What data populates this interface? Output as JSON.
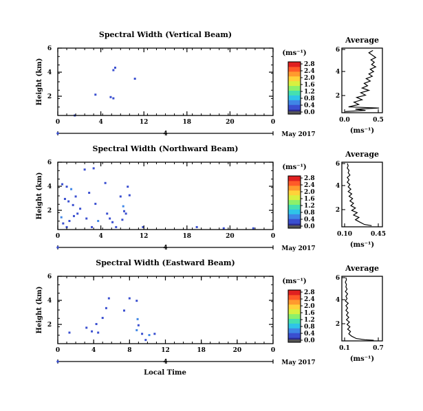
{
  "chart_data": [
    {
      "type": "heatmap",
      "title": "Spectral Width (Vertical Beam)",
      "ylabel": "Height (km)",
      "xticks": [
        "0",
        "4",
        "12",
        "18",
        "20",
        "0"
      ],
      "yticks": [
        "2",
        "4",
        "6"
      ],
      "ylim": [
        0.5,
        6
      ],
      "xlim": [
        0,
        24
      ],
      "date_marker": "4",
      "date_label": "May 2017",
      "colorbar": {
        "unit": "(ms⁻¹)",
        "ticks": [
          "0.0",
          "0.4",
          "0.8",
          "1.2",
          "1.6",
          "2.0",
          "2.4",
          "2.8"
        ],
        "range": [
          0,
          2.8
        ]
      },
      "cells": [
        {
          "x": 6.4,
          "y": 4.4,
          "v": 0.3
        },
        {
          "x": 6.2,
          "y": 4.2,
          "v": 0.3
        },
        {
          "x": 8.6,
          "y": 3.5,
          "v": 0.4
        },
        {
          "x": 4.2,
          "y": 2.2,
          "v": 0.3
        },
        {
          "x": 5.9,
          "y": 2.0,
          "v": 0.3
        },
        {
          "x": 6.2,
          "y": 1.9,
          "v": 0.3
        },
        {
          "x": 1.9,
          "y": 0.5,
          "v": 0.2
        }
      ],
      "average": {
        "title": "Average",
        "xlabel": "(ms⁻¹)",
        "xticks": [
          "0.0",
          "0.5"
        ],
        "xlim": [
          0,
          0.6
        ],
        "yticks": [
          "2",
          "4",
          "6"
        ],
        "ylim": [
          0.5,
          6
        ],
        "profile": [
          [
            0.05,
            0.6
          ],
          [
            0.35,
            0.7
          ],
          [
            0.2,
            0.8
          ],
          [
            0.55,
            0.9
          ],
          [
            0.1,
            1.0
          ],
          [
            0.25,
            1.2
          ],
          [
            0.18,
            1.4
          ],
          [
            0.3,
            1.6
          ],
          [
            0.22,
            1.8
          ],
          [
            0.35,
            2.0
          ],
          [
            0.28,
            2.2
          ],
          [
            0.4,
            2.4
          ],
          [
            0.3,
            2.6
          ],
          [
            0.38,
            2.8
          ],
          [
            0.33,
            3.0
          ],
          [
            0.42,
            3.2
          ],
          [
            0.36,
            3.4
          ],
          [
            0.45,
            3.6
          ],
          [
            0.4,
            3.8
          ],
          [
            0.47,
            4.0
          ],
          [
            0.42,
            4.2
          ],
          [
            0.5,
            4.4
          ],
          [
            0.44,
            4.6
          ],
          [
            0.48,
            4.8
          ],
          [
            0.43,
            5.0
          ],
          [
            0.5,
            5.2
          ],
          [
            0.45,
            5.4
          ],
          [
            0.4,
            5.6
          ],
          [
            0.46,
            5.8
          ]
        ]
      }
    },
    {
      "type": "heatmap",
      "title": "Spectral Width (Northward Beam)",
      "ylabel": "Height (km)",
      "xticks": [
        "0",
        "4",
        "12",
        "18",
        "20",
        "0"
      ],
      "yticks": [
        "2",
        "4",
        "6"
      ],
      "ylim": [
        0.5,
        6
      ],
      "xlim": [
        0,
        24
      ],
      "date_marker": "4",
      "date_label": "May 2017",
      "colorbar": {
        "unit": "(ms⁻¹)",
        "ticks": [
          "0.0",
          "0.4",
          "0.8",
          "1.2",
          "1.6",
          "2.0",
          "2.4",
          "2.8"
        ],
        "range": [
          0,
          2.8
        ]
      },
      "cells": [
        {
          "x": 0.5,
          "y": 4.2,
          "v": 0.4
        },
        {
          "x": 1.0,
          "y": 4.0,
          "v": 0.3
        },
        {
          "x": 1.5,
          "y": 3.8,
          "v": 0.5
        },
        {
          "x": 0.8,
          "y": 3.0,
          "v": 0.4
        },
        {
          "x": 1.2,
          "y": 2.8,
          "v": 0.3
        },
        {
          "x": 1.7,
          "y": 2.5,
          "v": 0.4
        },
        {
          "x": 2.0,
          "y": 3.2,
          "v": 0.3
        },
        {
          "x": 2.5,
          "y": 2.2,
          "v": 0.4
        },
        {
          "x": 0.4,
          "y": 1.5,
          "v": 0.5
        },
        {
          "x": 0.6,
          "y": 1.0,
          "v": 0.4
        },
        {
          "x": 1.3,
          "y": 1.2,
          "v": 0.3
        },
        {
          "x": 1.8,
          "y": 1.6,
          "v": 0.4
        },
        {
          "x": 2.2,
          "y": 1.8,
          "v": 0.3
        },
        {
          "x": 3.0,
          "y": 5.4,
          "v": 0.4
        },
        {
          "x": 4.0,
          "y": 5.5,
          "v": 0.3
        },
        {
          "x": 3.5,
          "y": 3.5,
          "v": 0.4
        },
        {
          "x": 4.2,
          "y": 2.6,
          "v": 0.3
        },
        {
          "x": 3.2,
          "y": 1.4,
          "v": 0.4
        },
        {
          "x": 4.5,
          "y": 1.2,
          "v": 0.5
        },
        {
          "x": 5.5,
          "y": 1.8,
          "v": 0.3
        },
        {
          "x": 5.8,
          "y": 1.4,
          "v": 0.4
        },
        {
          "x": 6.1,
          "y": 1.1,
          "v": 0.3
        },
        {
          "x": 5.3,
          "y": 4.3,
          "v": 0.3
        },
        {
          "x": 7.0,
          "y": 3.2,
          "v": 0.4
        },
        {
          "x": 7.3,
          "y": 2.4,
          "v": 0.5
        },
        {
          "x": 7.4,
          "y": 2.0,
          "v": 0.4
        },
        {
          "x": 7.6,
          "y": 1.8,
          "v": 0.3
        },
        {
          "x": 7.8,
          "y": 4.0,
          "v": 0.4
        },
        {
          "x": 8.0,
          "y": 3.3,
          "v": 0.3
        },
        {
          "x": 7.2,
          "y": 1.3,
          "v": 0.4
        },
        {
          "x": 9.5,
          "y": 0.7,
          "v": 0.3
        },
        {
          "x": 15.5,
          "y": 0.7,
          "v": 0.3
        },
        {
          "x": 18.5,
          "y": 0.6,
          "v": 0.3
        },
        {
          "x": 21.8,
          "y": 0.6,
          "v": 0.3
        },
        {
          "x": 3.8,
          "y": 0.7,
          "v": 0.4
        },
        {
          "x": 1.0,
          "y": 0.7,
          "v": 0.4
        },
        {
          "x": 6.5,
          "y": 0.7,
          "v": 0.3
        }
      ],
      "average": {
        "title": "Average",
        "xlabel": "(ms⁻¹)",
        "xticks": [
          "0.10",
          "0.45"
        ],
        "xlim": [
          0.05,
          0.5
        ],
        "yticks": [
          "2",
          "4",
          "6"
        ],
        "ylim": [
          0.5,
          6
        ],
        "profile": [
          [
            0.38,
            0.6
          ],
          [
            0.3,
            0.7
          ],
          [
            0.25,
            0.9
          ],
          [
            0.2,
            1.1
          ],
          [
            0.24,
            1.3
          ],
          [
            0.18,
            1.5
          ],
          [
            0.22,
            1.7
          ],
          [
            0.16,
            1.9
          ],
          [
            0.2,
            2.1
          ],
          [
            0.15,
            2.3
          ],
          [
            0.18,
            2.5
          ],
          [
            0.14,
            2.7
          ],
          [
            0.17,
            2.9
          ],
          [
            0.13,
            3.1
          ],
          [
            0.16,
            3.3
          ],
          [
            0.12,
            3.5
          ],
          [
            0.15,
            3.7
          ],
          [
            0.12,
            3.9
          ],
          [
            0.14,
            4.1
          ],
          [
            0.11,
            4.3
          ],
          [
            0.13,
            4.5
          ],
          [
            0.11,
            4.7
          ],
          [
            0.14,
            4.9
          ],
          [
            0.12,
            5.1
          ],
          [
            0.13,
            5.3
          ],
          [
            0.11,
            5.5
          ],
          [
            0.12,
            5.7
          ],
          [
            0.11,
            5.9
          ]
        ]
      }
    },
    {
      "type": "heatmap",
      "title": "Spectral Width (Eastward Beam)",
      "ylabel": "Height (km)",
      "xlabel": "Local Time",
      "xticks": [
        "0",
        "4",
        "8",
        "12",
        "18",
        "20",
        "0"
      ],
      "yticks": [
        "2",
        "4",
        "6"
      ],
      "ylim": [
        0.5,
        6
      ],
      "xlim": [
        0,
        24
      ],
      "date_marker": "4",
      "date_label": "May 2017",
      "colorbar": {
        "unit": "(ms⁻¹)",
        "ticks": [
          "0.0",
          "0.4",
          "0.8",
          "1.2",
          "1.6",
          "2.0",
          "2.4",
          "2.8"
        ],
        "range": [
          0,
          2.8
        ]
      },
      "cells": [
        {
          "x": 1.3,
          "y": 1.4,
          "v": 0.4
        },
        {
          "x": 3.2,
          "y": 1.8,
          "v": 0.3
        },
        {
          "x": 3.8,
          "y": 1.5,
          "v": 0.3
        },
        {
          "x": 4.3,
          "y": 2.1,
          "v": 0.3
        },
        {
          "x": 5.0,
          "y": 2.6,
          "v": 0.3
        },
        {
          "x": 5.4,
          "y": 3.4,
          "v": 0.3
        },
        {
          "x": 4.5,
          "y": 1.4,
          "v": 0.3
        },
        {
          "x": 5.7,
          "y": 4.2,
          "v": 0.3
        },
        {
          "x": 7.4,
          "y": 3.2,
          "v": 0.4
        },
        {
          "x": 8.0,
          "y": 4.2,
          "v": 0.3
        },
        {
          "x": 8.8,
          "y": 4.0,
          "v": 0.4
        },
        {
          "x": 8.9,
          "y": 2.5,
          "v": 0.5
        },
        {
          "x": 9.0,
          "y": 2.0,
          "v": 0.4
        },
        {
          "x": 8.8,
          "y": 1.6,
          "v": 0.5
        },
        {
          "x": 9.4,
          "y": 1.3,
          "v": 0.4
        },
        {
          "x": 10.2,
          "y": 1.2,
          "v": 0.5
        },
        {
          "x": 10.8,
          "y": 1.3,
          "v": 0.4
        },
        {
          "x": 9.8,
          "y": 0.8,
          "v": 0.3
        }
      ],
      "average": {
        "title": "Average",
        "xlabel": "(ms⁻¹)",
        "xticks": [
          "0.1",
          "0.7"
        ],
        "xlim": [
          0.05,
          0.75
        ],
        "yticks": [
          "2",
          "4",
          "6"
        ],
        "ylim": [
          0.5,
          6
        ],
        "profile": [
          [
            0.6,
            0.55
          ],
          [
            0.45,
            0.6
          ],
          [
            0.3,
            0.7
          ],
          [
            0.22,
            0.9
          ],
          [
            0.17,
            1.1
          ],
          [
            0.2,
            1.3
          ],
          [
            0.15,
            1.5
          ],
          [
            0.19,
            1.7
          ],
          [
            0.14,
            1.9
          ],
          [
            0.18,
            2.1
          ],
          [
            0.13,
            2.3
          ],
          [
            0.17,
            2.5
          ],
          [
            0.13,
            2.7
          ],
          [
            0.16,
            2.9
          ],
          [
            0.12,
            3.1
          ],
          [
            0.15,
            3.3
          ],
          [
            0.12,
            3.5
          ],
          [
            0.16,
            3.7
          ],
          [
            0.11,
            3.9
          ],
          [
            0.14,
            4.1
          ],
          [
            0.12,
            4.3
          ],
          [
            0.15,
            4.5
          ],
          [
            0.11,
            4.7
          ],
          [
            0.14,
            4.9
          ],
          [
            0.12,
            5.1
          ],
          [
            0.13,
            5.3
          ],
          [
            0.11,
            5.5
          ],
          [
            0.13,
            5.7
          ],
          [
            0.12,
            5.9
          ]
        ]
      }
    }
  ]
}
